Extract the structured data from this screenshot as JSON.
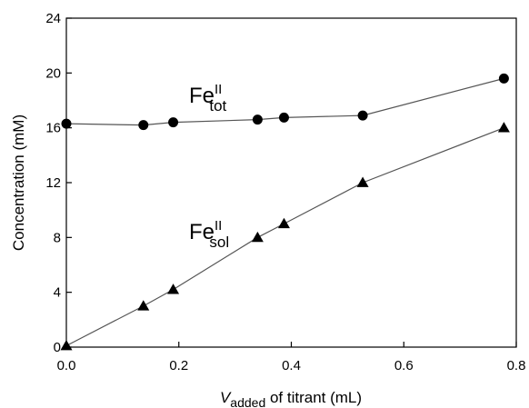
{
  "chart_data": {
    "type": "line",
    "xlabel": {
      "main": "V",
      "sub": "added",
      "rest": " of titrant (mL)"
    },
    "ylabel": "Concentration (mM)",
    "xlim": [
      0,
      0.8
    ],
    "ylim": [
      0,
      24
    ],
    "xticks": [
      0.0,
      0.2,
      0.4,
      0.6,
      0.8
    ],
    "xtick_labels": [
      "0.0",
      "0.2",
      "0.4",
      "0.6",
      "0.8"
    ],
    "yticks": [
      0,
      4,
      8,
      12,
      16,
      20,
      24
    ],
    "ytick_labels": [
      "0",
      "4",
      "8",
      "12",
      "16",
      "20",
      "24"
    ],
    "grid": false,
    "series": [
      {
        "label": {
          "main": "Fe",
          "sup": "II",
          "sub": "tot"
        },
        "marker": "circle",
        "color": "#000000",
        "x": [
          0.0,
          0.137,
          0.19,
          0.34,
          0.387,
          0.527,
          0.778
        ],
        "y": [
          16.3,
          16.2,
          16.4,
          16.6,
          16.75,
          16.9,
          19.6
        ]
      },
      {
        "label": {
          "main": "Fe",
          "sup": "II",
          "sub": "sol"
        },
        "marker": "triangle",
        "color": "#000000",
        "x": [
          0.0,
          0.137,
          0.19,
          0.34,
          0.387,
          0.527,
          0.778
        ],
        "y": [
          0.1,
          3.0,
          4.2,
          8.0,
          9.0,
          12.0,
          16.0
        ]
      }
    ]
  }
}
